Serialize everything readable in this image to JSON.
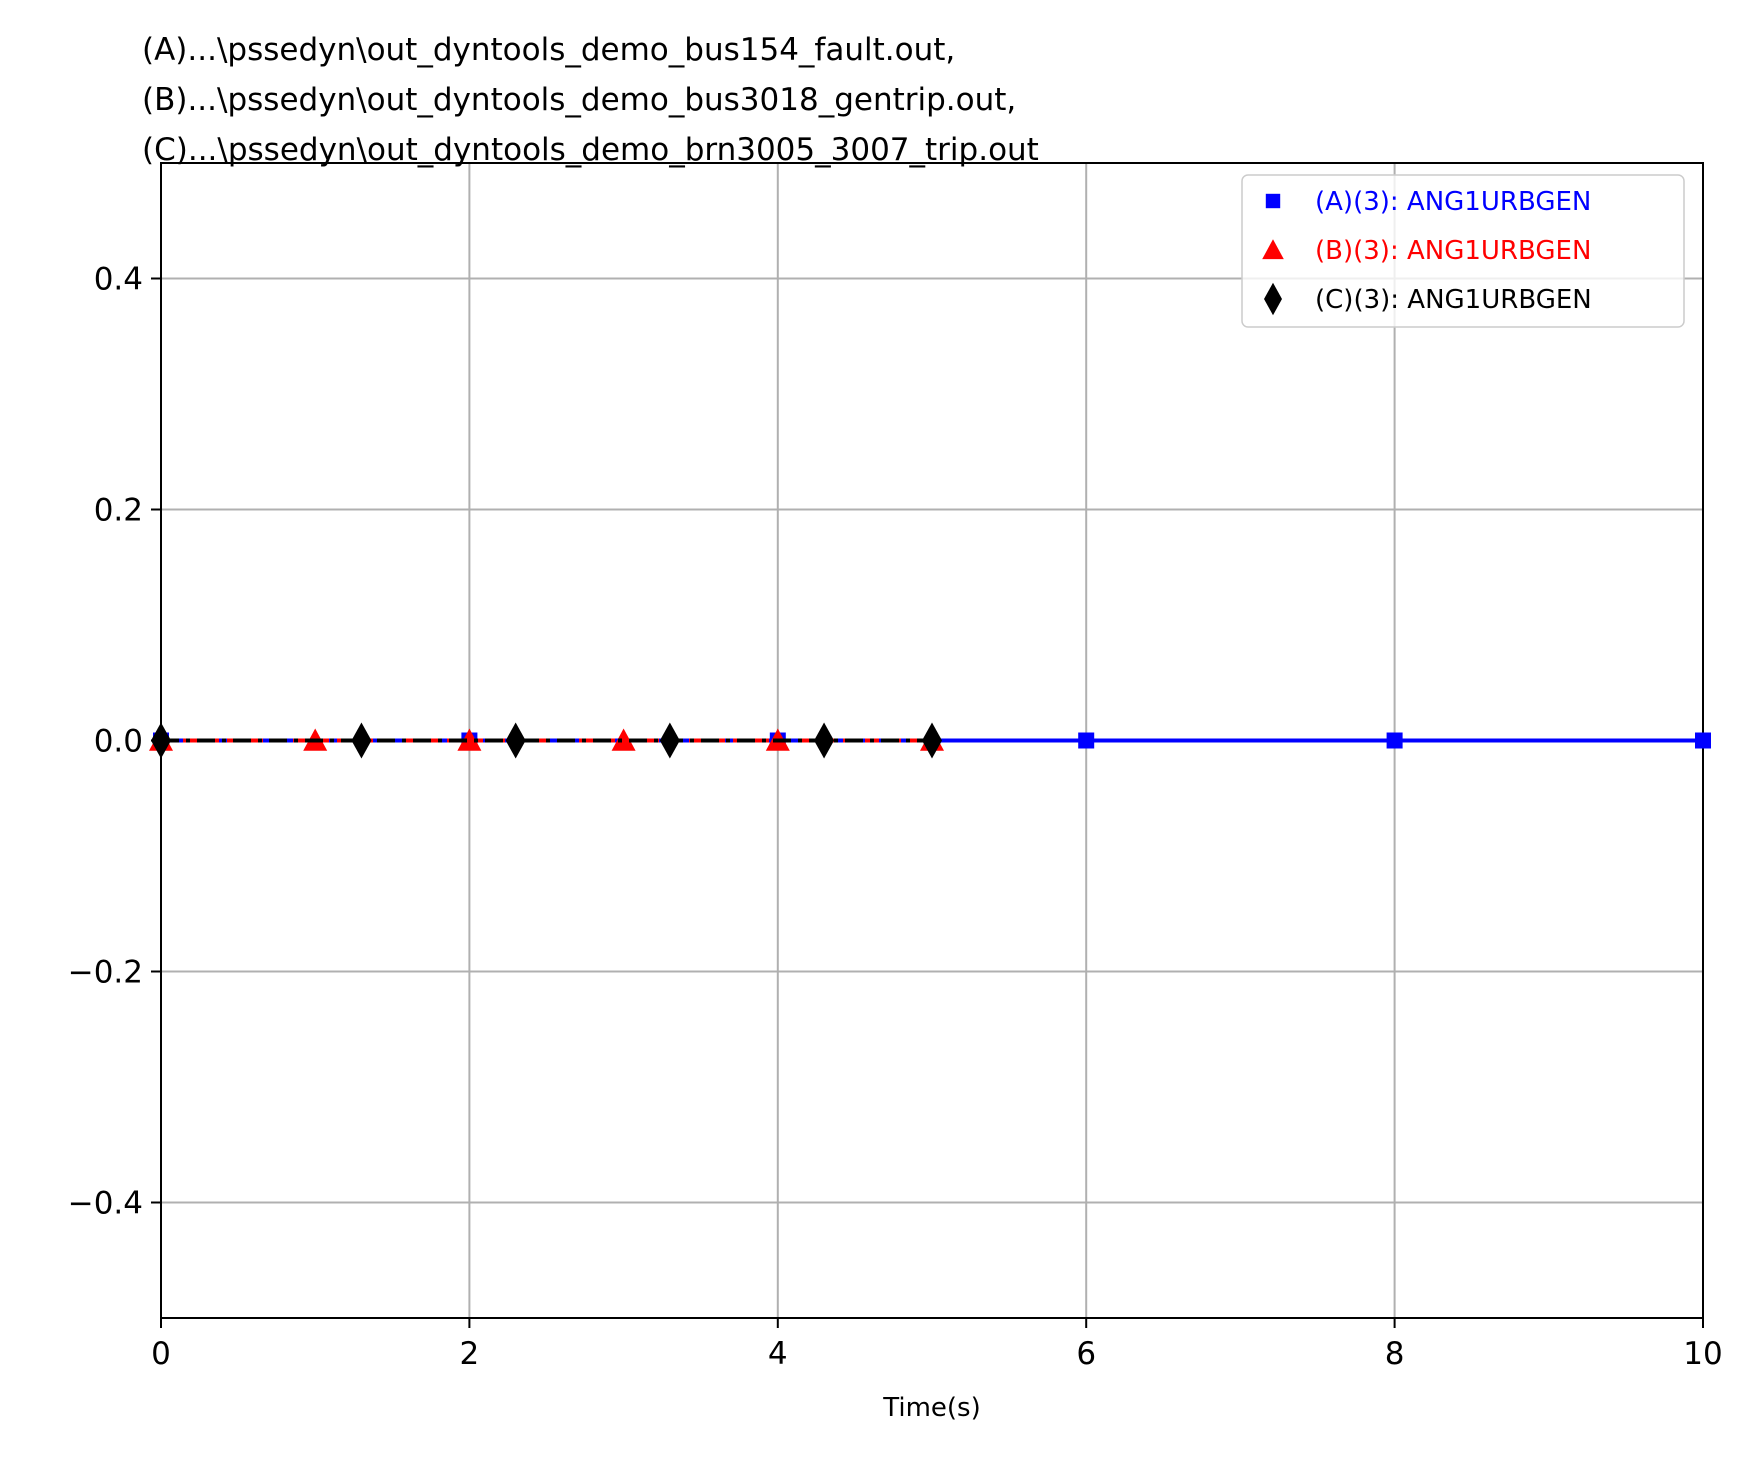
{
  "chart_data": {
    "type": "line",
    "title_lines": [
      "(A)...\\pssedyn\\out_dyntools_demo_bus154_fault.out,",
      "(B)...\\pssedyn\\out_dyntools_demo_bus3018_gentrip.out,",
      "(C)...\\pssedyn\\out_dyntools_demo_brn3005_3007_trip.out"
    ],
    "xlabel": "Time(s)",
    "ylabel": "",
    "xlim": [
      0,
      10
    ],
    "ylim": [
      -0.5,
      0.5
    ],
    "xticks": [
      0,
      2,
      4,
      6,
      8,
      10
    ],
    "xtick_labels": [
      "0",
      "2",
      "4",
      "6",
      "8",
      "10"
    ],
    "yticks": [
      -0.4,
      -0.2,
      0.0,
      0.2,
      0.4
    ],
    "ytick_labels": [
      "−0.4",
      "−0.2",
      "0.0",
      "0.2",
      "0.4"
    ],
    "grid": true,
    "legend_position": "top-right",
    "series": [
      {
        "name": "(A)(3): ANG1URBGEN",
        "color": "#0000ff",
        "marker": "square",
        "line_style": "solid",
        "x": [
          0,
          10
        ],
        "y": [
          0.0,
          0.0
        ],
        "marker_x": [
          0,
          2,
          4,
          6,
          8,
          10
        ],
        "marker_y": [
          0.0,
          0.0,
          0.0,
          0.0,
          0.0,
          0.0
        ]
      },
      {
        "name": "(B)(3): ANG1URBGEN",
        "color": "#ff0000",
        "marker": "triangle",
        "line_style": "dashed",
        "x": [
          0,
          5
        ],
        "y": [
          0.0,
          0.0
        ],
        "marker_x": [
          0,
          1,
          2,
          3,
          4,
          5
        ],
        "marker_y": [
          0.0,
          0.0,
          0.0,
          0.0,
          0.0,
          0.0
        ]
      },
      {
        "name": "(C)(3): ANG1URBGEN",
        "color": "#000000",
        "marker": "diamond",
        "line_style": "dashdot",
        "x": [
          0,
          5
        ],
        "y": [
          0.0,
          0.0
        ],
        "marker_x": [
          0,
          1.3,
          2.3,
          3.3,
          4.3,
          5
        ],
        "marker_y": [
          0.0,
          0.0,
          0.0,
          0.0,
          0.0,
          0.0
        ]
      }
    ]
  }
}
